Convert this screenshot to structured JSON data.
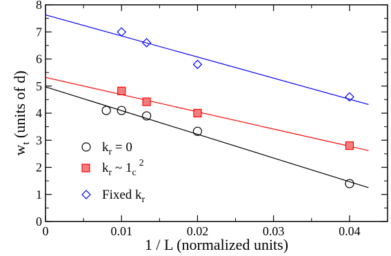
{
  "chart_data": {
    "type": "scatter",
    "xlabel": "1 / L (normalized units)",
    "ylabel": {
      "main": "w",
      "sub": "t",
      "rest": " (units of d)"
    },
    "xlim": [
      0,
      0.045
    ],
    "ylim": [
      0,
      8
    ],
    "xticks": [
      0,
      0.01,
      0.02,
      0.03,
      0.04
    ],
    "xtick_labels": [
      "0",
      "0.01",
      "0.02",
      "0.03",
      "0.04"
    ],
    "yticks": [
      0,
      1,
      2,
      3,
      4,
      5,
      6,
      7,
      8
    ],
    "ytick_labels": [
      "0",
      "1",
      "2",
      "3",
      "4",
      "5",
      "6",
      "7",
      "8"
    ],
    "grid": false,
    "legend_position": "bottom-left",
    "series": [
      {
        "legend": {
          "main": "k",
          "sub": "r",
          "rest": " = 0",
          "sup": ""
        },
        "marker": "circle",
        "color": "#000000",
        "points": [
          [
            0.008,
            4.1
          ],
          [
            0.01,
            4.1
          ],
          [
            0.0133,
            3.9
          ],
          [
            0.02,
            3.33
          ],
          [
            0.04,
            1.4
          ]
        ],
        "fit": {
          "x0": 0,
          "y0": 4.97,
          "x1": 0.0425,
          "y1": 1.25
        }
      },
      {
        "legend": {
          "main": "k",
          "sub": "r",
          "rest": " ~ 1",
          "sub2": "c",
          "sup": "2"
        },
        "marker": "square",
        "color": "#ff0000",
        "fill": "#f08080",
        "points": [
          [
            0.01,
            4.82
          ],
          [
            0.0133,
            4.42
          ],
          [
            0.02,
            4.0
          ],
          [
            0.04,
            2.8
          ]
        ],
        "fit": {
          "x0": 0,
          "y0": 5.32,
          "x1": 0.0425,
          "y1": 2.62
        }
      },
      {
        "legend": {
          "main": "Fixed k",
          "sub": "r",
          "rest": "",
          "sup": ""
        },
        "marker": "diamond",
        "color": "#0000ff",
        "points": [
          [
            0.01,
            7.0
          ],
          [
            0.0133,
            6.6
          ],
          [
            0.02,
            5.8
          ],
          [
            0.04,
            4.6
          ]
        ],
        "fit": {
          "x0": 0,
          "y0": 7.63,
          "x1": 0.0425,
          "y1": 4.32
        }
      }
    ]
  }
}
